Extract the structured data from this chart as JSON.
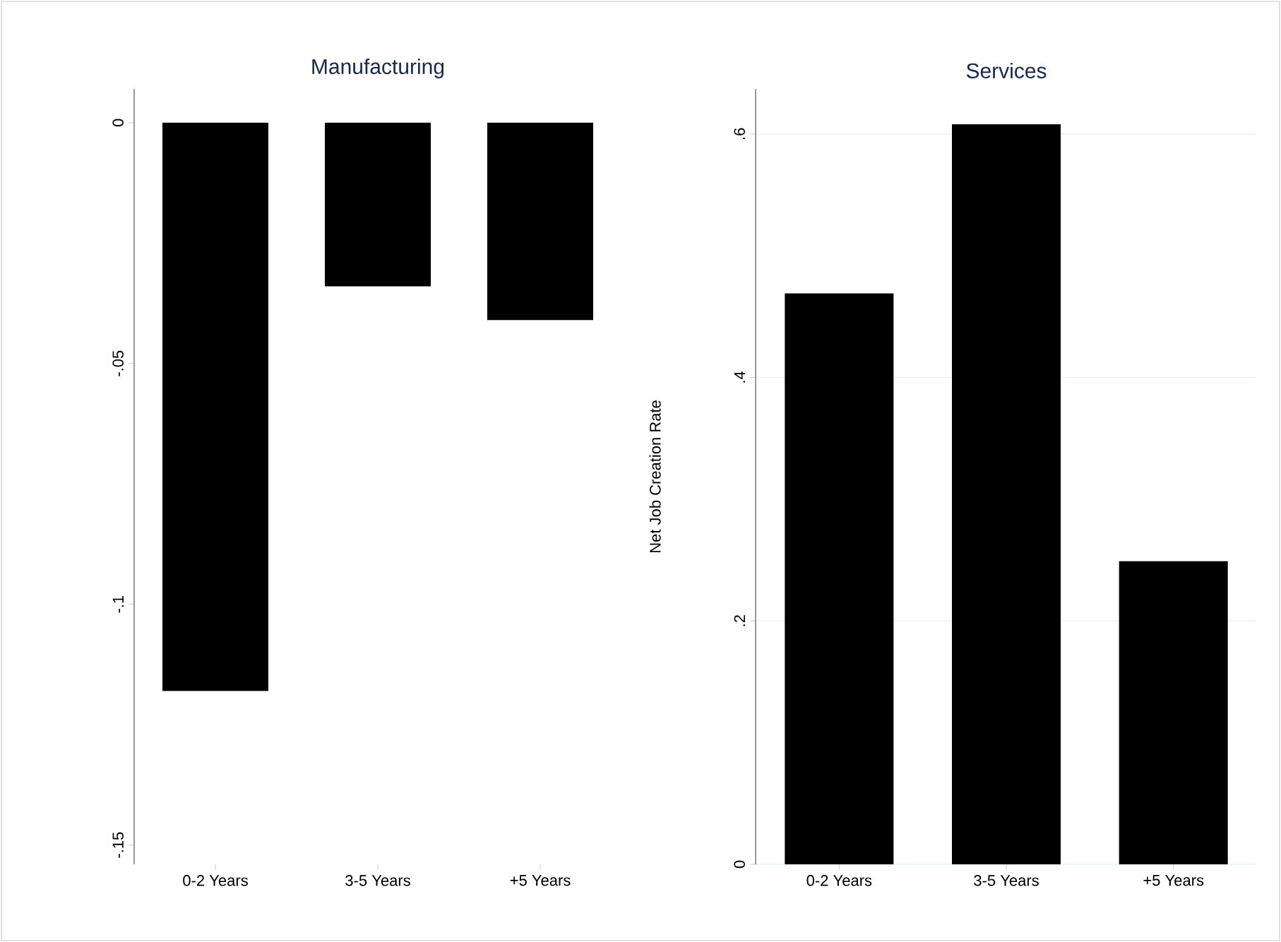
{
  "chart_data": [
    {
      "type": "bar",
      "title": "Manufacturing",
      "categories": [
        "0-2 Years",
        "3-5 Years",
        "+5 Years"
      ],
      "values": [
        -0.118,
        -0.034,
        -0.041
      ],
      "color": "#000000",
      "ylim": [
        -0.154,
        0.007
      ],
      "yticks": [
        0,
        {
          "value": -0.05,
          "label": "-.05"
        },
        {
          "value": -0.1,
          "label": "-.1"
        },
        {
          "value": -0.15,
          "label": "-.15"
        }
      ]
    },
    {
      "type": "bar",
      "title": "Services",
      "ylabel": "Net Job Creation Rate",
      "categories": [
        "0-2 Years",
        "3-5 Years",
        "+5 Years"
      ],
      "values": [
        0.469,
        0.608,
        0.249
      ],
      "color": "#000000",
      "ylim": [
        0,
        0.637
      ],
      "yticks": [
        0,
        {
          "value": 0.2,
          "label": ".2"
        },
        {
          "value": 0.4,
          "label": ".4"
        },
        {
          "value": 0.6,
          "label": ".6"
        }
      ],
      "grid": "y"
    }
  ]
}
